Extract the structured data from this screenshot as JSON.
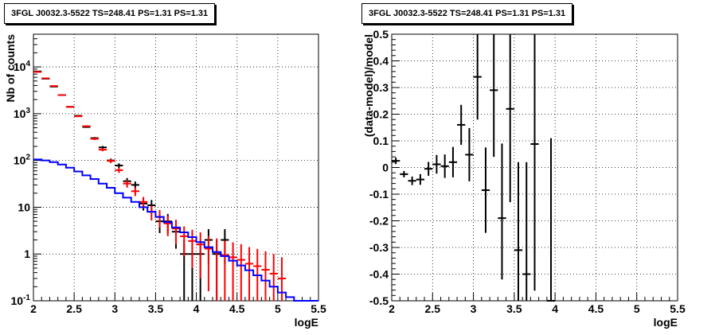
{
  "chart_data": [
    {
      "type": "line",
      "title": "3FGL J0032.3-5522 TS=248.41 PS=1.31 PS=1.31",
      "xlabel": "logE",
      "ylabel": "Nb of counts",
      "xlim": [
        2,
        5.5
      ],
      "ylim": [
        0.1,
        50000
      ],
      "yscale": "log",
      "grid": true,
      "xticks": [
        "2",
        "2.5",
        "3",
        "3.5",
        "4",
        "4.5",
        "5",
        "5.5"
      ],
      "yticks": [
        "10^-1",
        "1",
        "10",
        "10^2",
        "10^3",
        "10^4"
      ],
      "series": [
        {
          "color": "#000000",
          "style": "errorbar",
          "x": [
            2.05,
            2.15,
            2.25,
            2.35,
            2.45,
            2.55,
            2.65,
            2.75,
            2.85,
            2.95,
            3.05,
            3.15,
            3.25,
            3.35,
            3.45,
            3.55,
            3.65,
            3.75,
            3.85,
            3.95,
            4.05,
            4.15,
            4.25,
            4.35
          ],
          "y": [
            8000,
            5600,
            3800,
            2500,
            1400,
            900,
            520,
            300,
            190,
            100,
            78,
            36,
            30,
            12,
            11,
            5,
            5,
            3,
            1,
            1,
            1,
            2,
            1,
            2
          ],
          "yerr_low": [
            90,
            75,
            62,
            50,
            37,
            30,
            23,
            17,
            14,
            10,
            9,
            6,
            5.5,
            3.5,
            3.3,
            2.2,
            2.2,
            1.7,
            1,
            1,
            1,
            1.4,
            1,
            1.4
          ],
          "yerr_high": [
            90,
            75,
            62,
            50,
            37,
            30,
            23,
            17,
            14,
            10,
            9,
            6,
            5.5,
            3.5,
            3.3,
            2.2,
            2.2,
            1.7,
            1,
            1,
            1,
            1.4,
            1,
            1.4
          ]
        },
        {
          "color": "#ff0000",
          "style": "errorbar",
          "x": [
            2.05,
            2.15,
            2.25,
            2.35,
            2.45,
            2.55,
            2.65,
            2.75,
            2.85,
            2.95,
            3.05,
            3.15,
            3.25,
            3.35,
            3.45,
            3.55,
            3.65,
            3.75,
            3.85,
            3.95,
            4.05,
            4.15,
            4.25,
            4.35,
            4.45,
            4.55,
            4.65,
            4.75,
            4.85,
            4.95,
            5.05
          ],
          "y": [
            7800,
            5700,
            3900,
            2500,
            1400,
            880,
            540,
            290,
            170,
            98,
            62,
            32,
            22,
            13,
            8,
            6.2,
            4.5,
            3.5,
            2.4,
            1.9,
            1.6,
            1.3,
            1.1,
            0.95,
            0.85,
            0.75,
            0.62,
            0.55,
            0.46,
            0.38,
            0.3
          ],
          "yerr_low": [
            90,
            75,
            62,
            50,
            37,
            30,
            23,
            17,
            13,
            10,
            8,
            5.7,
            4.7,
            3.6,
            2.8,
            2.5,
            2.1,
            1.9,
            1.5,
            1.4,
            1.3,
            1.14,
            1.05,
            0.85,
            0.75,
            0.65,
            0.52,
            0.45,
            0.36,
            0.28,
            0.2
          ],
          "yerr_high": [
            90,
            75,
            62,
            50,
            37,
            30,
            23,
            17,
            13,
            10,
            8,
            5.7,
            4.7,
            3.6,
            2.8,
            2.5,
            2.1,
            1.9,
            1.5,
            1.4,
            1.3,
            1.14,
            1.05,
            0.98,
            0.92,
            0.87,
            0.79,
            0.74,
            0.68,
            0.62,
            0.55
          ]
        },
        {
          "color": "#0000ff",
          "style": "step",
          "x": [
            2.0,
            2.1,
            2.2,
            2.3,
            2.4,
            2.5,
            2.6,
            2.7,
            2.8,
            2.9,
            3.0,
            3.1,
            3.2,
            3.3,
            3.4,
            3.5,
            3.6,
            3.7,
            3.8,
            3.9,
            4.0,
            4.1,
            4.2,
            4.3,
            4.4,
            4.5,
            4.6,
            4.7,
            4.8,
            4.9,
            5.0,
            5.1,
            5.2,
            5.3,
            5.4
          ],
          "y": [
            105,
            100,
            92,
            82,
            70,
            58,
            48,
            40,
            32,
            26,
            20,
            16,
            13,
            10,
            8,
            6.2,
            4.8,
            3.7,
            2.9,
            2.3,
            1.8,
            1.4,
            1.1,
            0.9,
            0.72,
            0.57,
            0.45,
            0.35,
            0.27,
            0.2,
            0.15,
            0.12,
            0.1,
            0.1,
            0.1
          ]
        }
      ]
    },
    {
      "type": "scatter",
      "title": "3FGL J0032.3-5522 TS=248.41 PS=1.31 PS=1.31",
      "xlabel": "logE",
      "ylabel": "(data-model)/model",
      "xlim": [
        2,
        5.5
      ],
      "ylim": [
        -0.5,
        0.5
      ],
      "grid": true,
      "xticks": [
        "2",
        "2.5",
        "3",
        "3.5",
        "4",
        "4.5",
        "5",
        "5.5"
      ],
      "yticks": [
        "-0.5",
        "-0.4",
        "-0.3",
        "-0.2",
        "-0.1",
        "0",
        "0.1",
        "0.2",
        "0.3",
        "0.4",
        "0.5"
      ],
      "series": [
        {
          "color": "#000000",
          "style": "errorbar",
          "x": [
            2.05,
            2.15,
            2.25,
            2.35,
            2.45,
            2.55,
            2.65,
            2.75,
            2.85,
            2.95,
            3.05,
            3.15,
            3.25,
            3.35,
            3.45,
            3.55,
            3.65,
            3.75,
            3.95
          ],
          "y": [
            0.025,
            -0.025,
            -0.05,
            -0.045,
            -0.005,
            0.012,
            0.005,
            0.02,
            0.16,
            0.048,
            0.34,
            -0.085,
            0.29,
            -0.19,
            0.22,
            -0.31,
            -0.4,
            0.088,
            -0.5
          ],
          "yerr_low": [
            0.012,
            0.012,
            0.016,
            0.02,
            0.026,
            0.035,
            0.044,
            0.057,
            0.075,
            0.1,
            0.16,
            0.16,
            0.25,
            0.23,
            0.35,
            0.19,
            0.1,
            0.55,
            0.0
          ],
          "yerr_high": [
            0.012,
            0.012,
            0.016,
            0.02,
            0.026,
            0.035,
            0.044,
            0.057,
            0.075,
            0.1,
            0.16,
            0.16,
            0.25,
            0.28,
            0.35,
            0.33,
            0.42,
            0.55,
            0.61
          ]
        }
      ]
    }
  ]
}
